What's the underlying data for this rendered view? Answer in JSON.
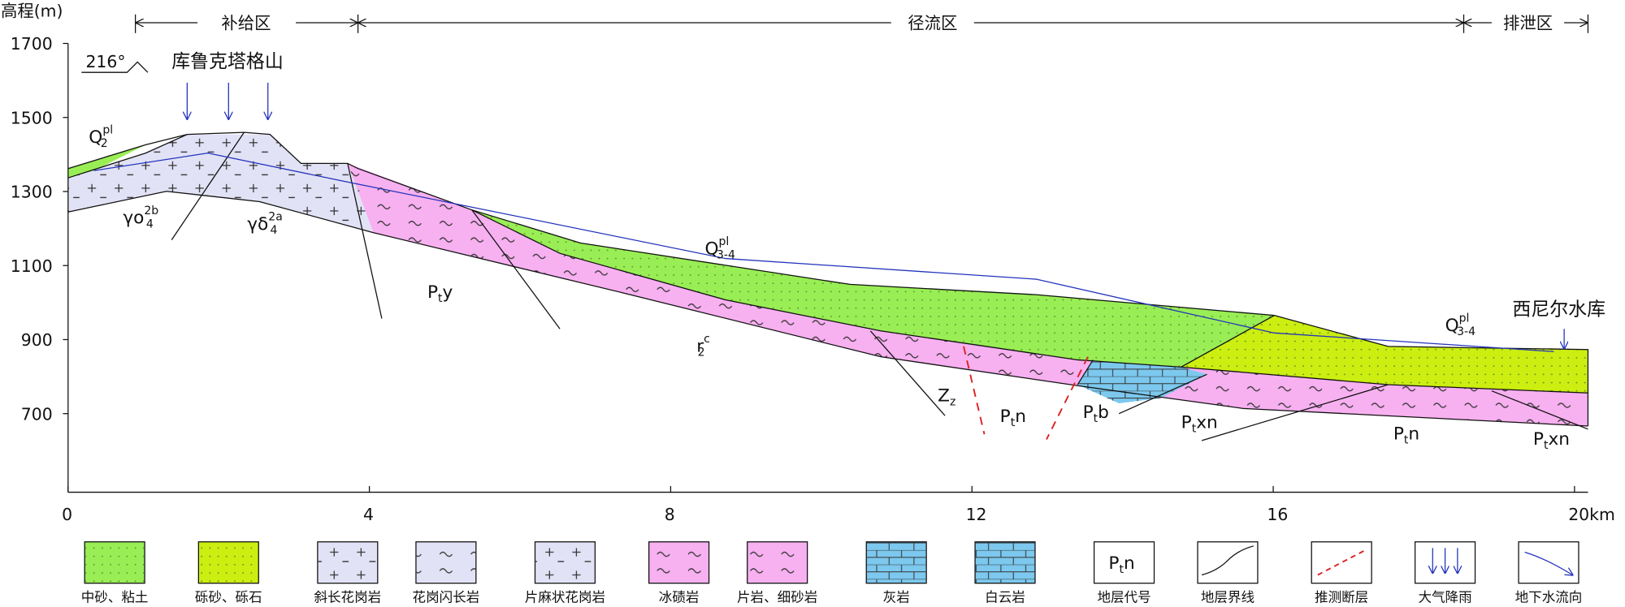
{
  "axes": {
    "y_label": "高程(m)",
    "yticks": [
      700,
      900,
      1100,
      1300,
      1500,
      1700
    ],
    "xticks": [
      0,
      4,
      8,
      12,
      16,
      {
        "value": 20,
        "label": "20km"
      }
    ]
  },
  "zones": [
    "补给区",
    "径流区",
    "排泄区"
  ],
  "annotations": {
    "strike": "216°",
    "mountain": "库鲁克塔格山",
    "reservoir": "西尼尔水库"
  },
  "formations": [
    {
      "main": "Q",
      "sub": "2",
      "sup": "pl"
    },
    {
      "main": "γο",
      "sub": "4",
      "sup": "2b"
    },
    {
      "main": "γδ",
      "sub": "4",
      "sup": "2a"
    },
    {
      "main": "P",
      "sub": "t",
      "after": "y"
    },
    {
      "main": "Q",
      "sub": "3-4",
      "sup": "pl"
    },
    {
      "main": "r",
      "sub": "2",
      "sup": "c"
    },
    {
      "main": "Z",
      "sub": "z"
    },
    {
      "main": "P",
      "sub": "t",
      "after": "n"
    },
    {
      "main": "P",
      "sub": "t",
      "after": "b"
    },
    {
      "main": "P",
      "sub": "t",
      "after": "xn"
    },
    {
      "main": "Q",
      "sub": "3-4",
      "sup": "pl"
    },
    {
      "main": "P",
      "sub": "t",
      "after": "n"
    },
    {
      "main": "P",
      "sub": "t",
      "after": "xn"
    }
  ],
  "legend": {
    "code_sample": {
      "main": "P",
      "sub": "t",
      "after": "n"
    },
    "items": [
      "中砂、粘土",
      "砾砂、砾石",
      "斜长花岗岩",
      "花岗闪长岩",
      "片麻状花岗岩",
      "冰碛岩",
      "片岩、细砂岩",
      "灰岩",
      "白云岩",
      "地层代号",
      "地层界线",
      "推测断层",
      "大气降雨",
      "地下水流向"
    ]
  }
}
